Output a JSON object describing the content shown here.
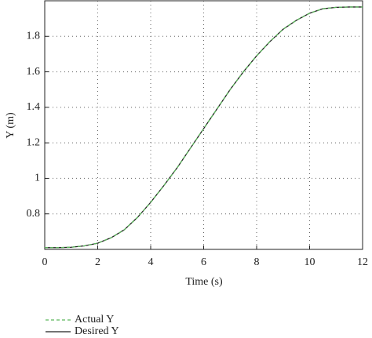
{
  "chart_data": {
    "type": "line",
    "x_label": "Time (s)",
    "y_label": "Y (m)",
    "x": [
      0,
      0.5,
      1,
      1.5,
      2,
      2.5,
      3,
      3.5,
      4,
      4.5,
      5,
      5.5,
      6,
      6.5,
      7,
      7.5,
      8,
      8.5,
      9,
      9.5,
      10,
      10.5,
      11,
      11.5,
      12
    ],
    "series": [
      {
        "name": "Actual Y",
        "color": "#5cb85c",
        "dashed": true,
        "values": [
          0.61,
          0.61,
          0.612,
          0.62,
          0.635,
          0.665,
          0.71,
          0.78,
          0.865,
          0.96,
          1.06,
          1.17,
          1.28,
          1.39,
          1.5,
          1.6,
          1.69,
          1.77,
          1.84,
          1.89,
          1.93,
          1.955,
          1.963,
          1.965,
          1.965
        ]
      },
      {
        "name": "Desired Y",
        "color": "#222222",
        "dashed": false,
        "values": [
          0.61,
          0.61,
          0.612,
          0.62,
          0.635,
          0.665,
          0.71,
          0.78,
          0.865,
          0.96,
          1.06,
          1.17,
          1.28,
          1.39,
          1.5,
          1.6,
          1.69,
          1.77,
          1.84,
          1.89,
          1.93,
          1.955,
          1.963,
          1.965,
          1.965
        ]
      }
    ],
    "xlim": [
      0,
      12
    ],
    "xticks": [
      0,
      2,
      4,
      6,
      8,
      10,
      12
    ],
    "ylim": [
      0.6,
      2.0
    ],
    "yticks": [
      0.8,
      1,
      1.2,
      1.4,
      1.6,
      1.8
    ],
    "grid": true,
    "legend": "bottom-left"
  }
}
